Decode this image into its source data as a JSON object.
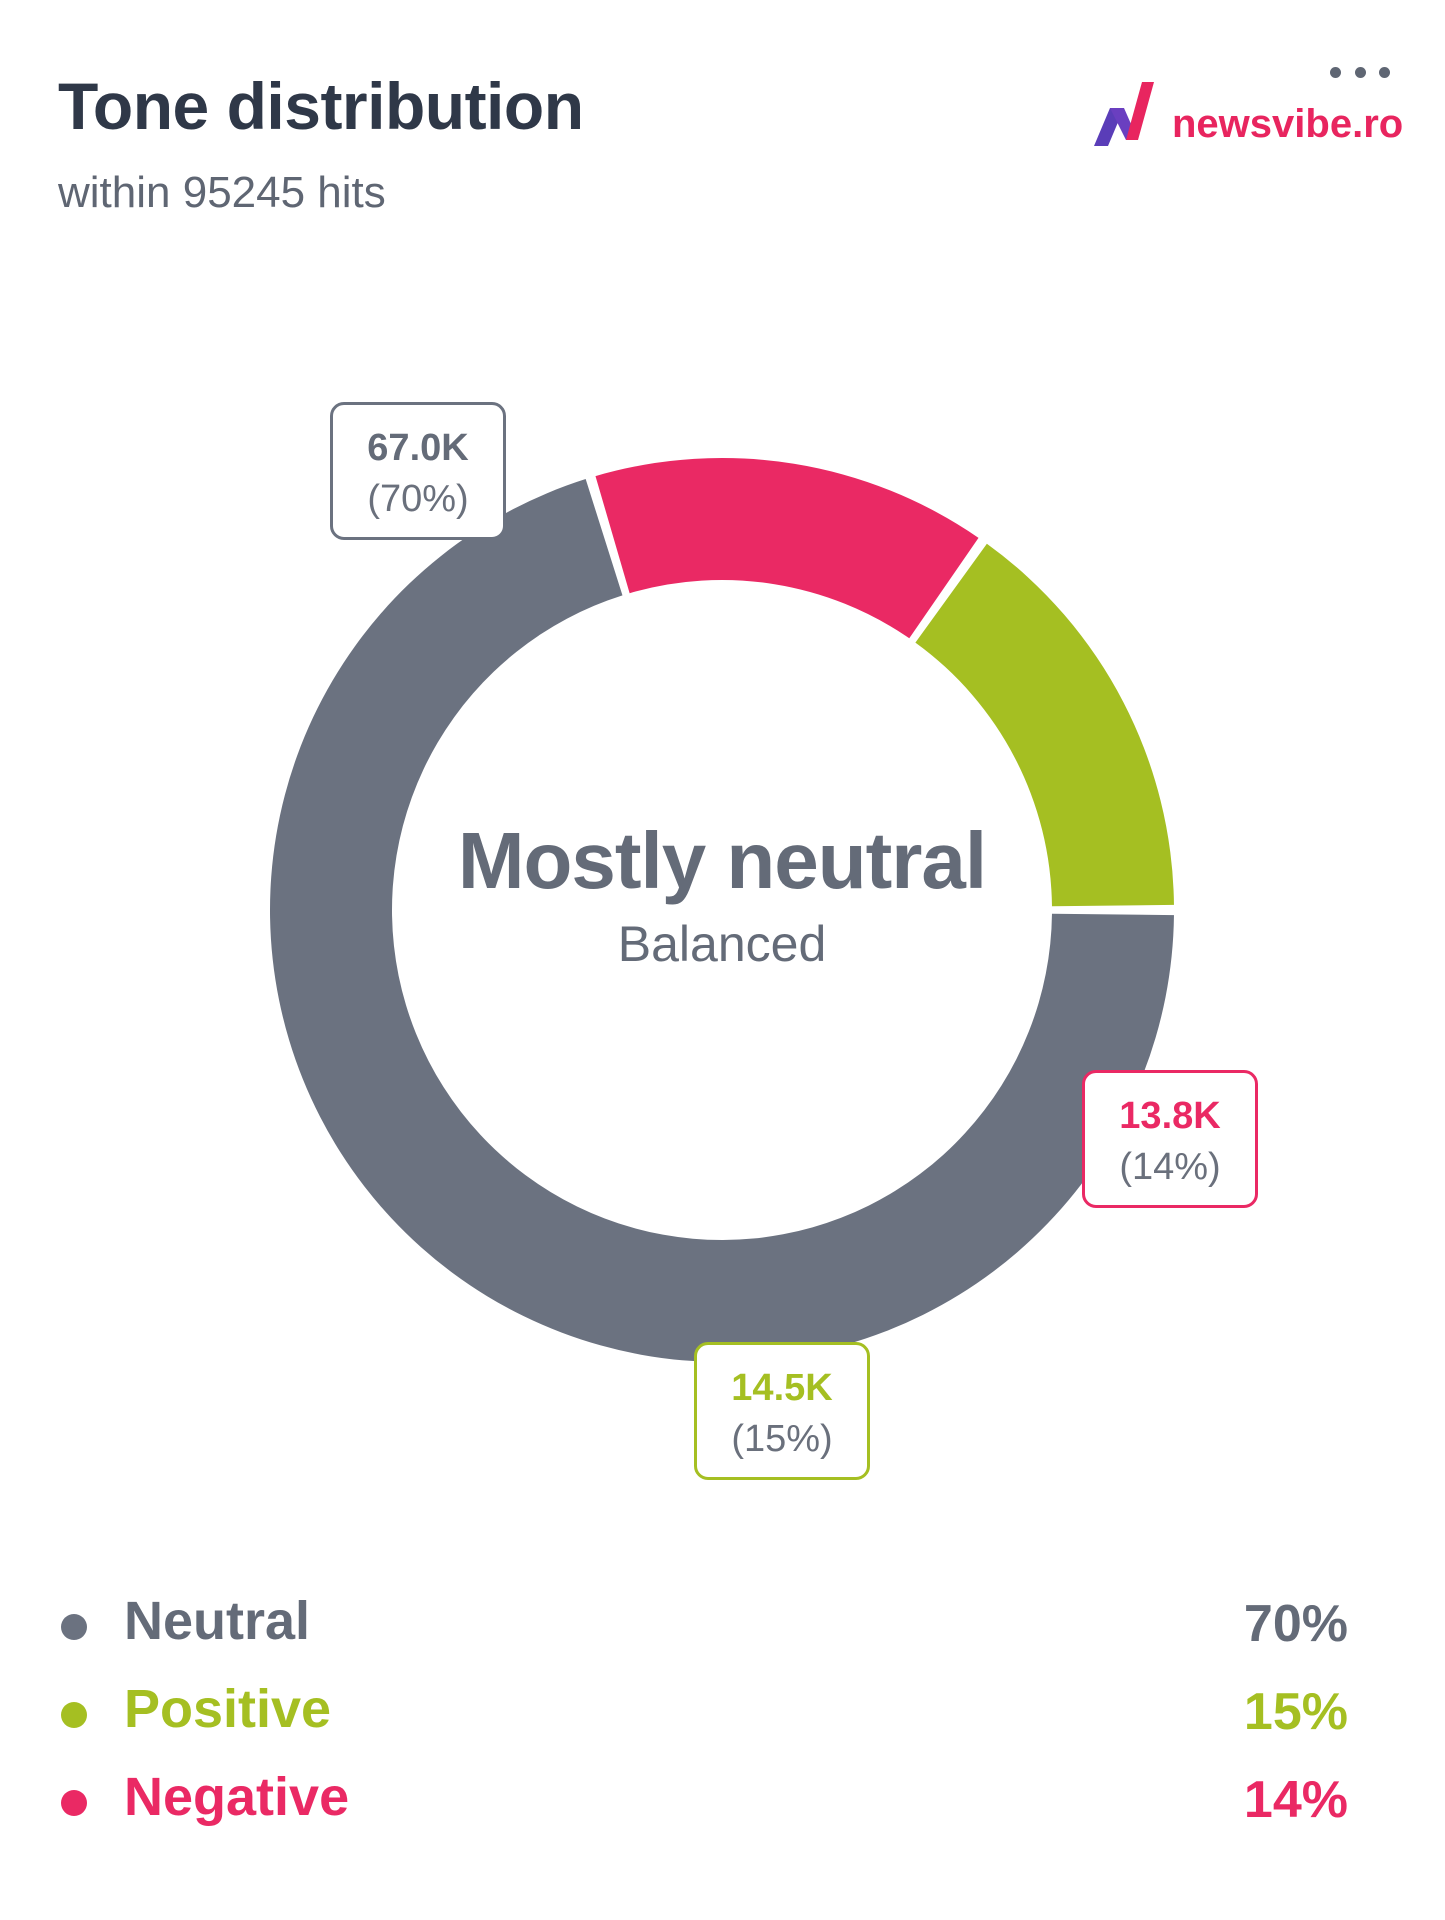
{
  "header": {
    "title": "Tone distribution",
    "subtitle": "within 95245 hits"
  },
  "brand": {
    "name": "newsvibe.ro",
    "icon": "newsvibe-n-logo"
  },
  "menu": {
    "icon": "more-dots-icon"
  },
  "chart_data": {
    "type": "pie",
    "variant": "donut",
    "center_title": "Mostly neutral",
    "center_subtitle": "Balanced",
    "slices": [
      {
        "label": "Neutral",
        "value": 67.0,
        "value_label": "67.0K",
        "percent_label": "(70%)",
        "legend_percent": "70%",
        "color": "#6b7280"
      },
      {
        "label": "Negative",
        "value": 13.8,
        "value_label": "13.8K",
        "percent_label": "(14%)",
        "legend_percent": "14%",
        "color": "#ea2964"
      },
      {
        "label": "Positive",
        "value": 14.5,
        "value_label": "14.5K",
        "percent_label": "(15%)",
        "legend_percent": "15%",
        "color": "#a5bf22"
      }
    ]
  },
  "legend": [
    {
      "name": "Neutral",
      "value": "70%",
      "color": "#6b7280"
    },
    {
      "name": "Positive",
      "value": "15%",
      "color": "#a5bf22"
    },
    {
      "name": "Negative",
      "value": "14%",
      "color": "#ea2964"
    }
  ]
}
